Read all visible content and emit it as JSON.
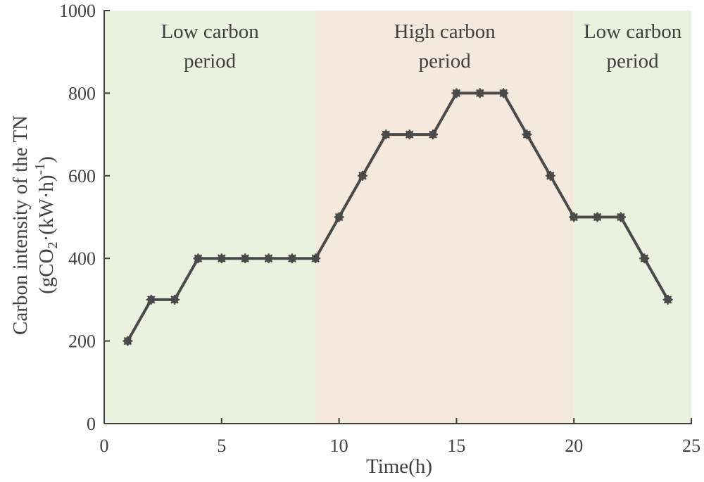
{
  "chart_data": {
    "type": "line",
    "title": "",
    "xlabel": "Time(h)",
    "ylabel": {
      "line1": "Carbon intensity of the TN",
      "line2_prefix": "(gCO",
      "line2_sub": "2",
      "line2_mid": "·(kW·h)",
      "line2_sup": "-1",
      "line2_suffix": ")"
    },
    "xlim": [
      0,
      25
    ],
    "ylim": [
      0,
      1000
    ],
    "xticks": [
      0,
      5,
      10,
      15,
      20,
      25
    ],
    "yticks": [
      0,
      200,
      400,
      600,
      800,
      1000
    ],
    "series": [
      {
        "name": "Carbon intensity",
        "x": [
          1,
          2,
          3,
          4,
          5,
          6,
          7,
          8,
          9,
          10,
          11,
          12,
          13,
          14,
          15,
          16,
          17,
          18,
          19,
          20,
          21,
          22,
          23,
          24
        ],
        "values": [
          200,
          300,
          300,
          400,
          400,
          400,
          400,
          400,
          400,
          500,
          600,
          700,
          700,
          700,
          800,
          800,
          800,
          700,
          600,
          500,
          500,
          500,
          400,
          300
        ]
      }
    ],
    "regions": [
      {
        "start": 0,
        "end": 9,
        "label": [
          "Low carbon",
          "period"
        ],
        "kind": "low"
      },
      {
        "start": 9,
        "end": 20,
        "label": [
          "High carbon",
          "period"
        ],
        "kind": "high"
      },
      {
        "start": 20,
        "end": 25,
        "label": [
          "Low carbon",
          "period"
        ],
        "kind": "low"
      }
    ],
    "colors": {
      "low": "#e9f1df",
      "high": "#f5e8dc",
      "line": "#4a4a4a",
      "axis": "#404040"
    }
  }
}
